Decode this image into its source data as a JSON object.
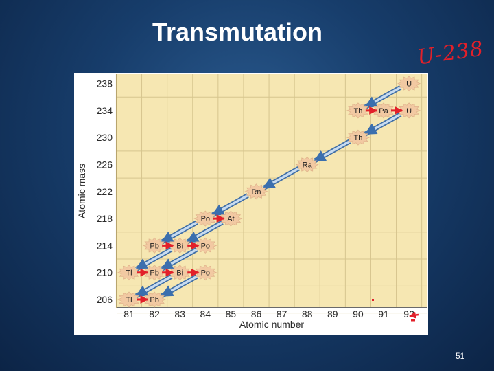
{
  "slide": {
    "title": "Transmutation",
    "page_number": "51",
    "annotation": "U-238"
  },
  "colors": {
    "background": "#173d6b",
    "chart_bg": "#f6e7b2",
    "grid": "#d6c58e",
    "node": "#f2c9a2",
    "arrow": "#5a8ec9",
    "ink": "#e2202a"
  },
  "chart_data": {
    "type": "scatter",
    "title": "",
    "xlabel": "Atomic number",
    "ylabel": "Atomic mass",
    "x_ticks": [
      81,
      82,
      83,
      84,
      85,
      86,
      87,
      88,
      89,
      90,
      91,
      92
    ],
    "y_ticks": [
      206,
      210,
      214,
      218,
      222,
      226,
      230,
      234,
      238
    ],
    "xlim": [
      81,
      92
    ],
    "ylim": [
      206,
      238
    ],
    "grid": true,
    "nuclides": [
      {
        "label": "U",
        "x": 92,
        "y": 238
      },
      {
        "label": "Th",
        "x": 90,
        "y": 234
      },
      {
        "label": "Pa",
        "x": 91,
        "y": 234
      },
      {
        "label": "U",
        "x": 92,
        "y": 234
      },
      {
        "label": "Th",
        "x": 90,
        "y": 230
      },
      {
        "label": "Ra",
        "x": 88,
        "y": 226
      },
      {
        "label": "Rn",
        "x": 86,
        "y": 222
      },
      {
        "label": "Po",
        "x": 84,
        "y": 218
      },
      {
        "label": "At",
        "x": 85,
        "y": 218
      },
      {
        "label": "Pb",
        "x": 82,
        "y": 214
      },
      {
        "label": "Bi",
        "x": 83,
        "y": 214
      },
      {
        "label": "Po",
        "x": 84,
        "y": 214
      },
      {
        "label": "Tl",
        "x": 81,
        "y": 210
      },
      {
        "label": "Pb",
        "x": 82,
        "y": 210
      },
      {
        "label": "Bi",
        "x": 83,
        "y": 210
      },
      {
        "label": "Po",
        "x": 84,
        "y": 210
      },
      {
        "label": "Tl",
        "x": 81,
        "y": 206
      },
      {
        "label": "Pb",
        "x": 82,
        "y": 206
      }
    ],
    "alpha_decays": [
      {
        "from": [
          92,
          238
        ],
        "to": [
          90,
          234
        ]
      },
      {
        "from": [
          92,
          234
        ],
        "to": [
          90,
          230
        ]
      },
      {
        "from": [
          90,
          230
        ],
        "to": [
          88,
          226
        ]
      },
      {
        "from": [
          88,
          226
        ],
        "to": [
          86,
          222
        ]
      },
      {
        "from": [
          86,
          222
        ],
        "to": [
          84,
          218
        ]
      },
      {
        "from": [
          84,
          218
        ],
        "to": [
          82,
          214
        ]
      },
      {
        "from": [
          85,
          218
        ],
        "to": [
          83,
          214
        ]
      },
      {
        "from": [
          83,
          214
        ],
        "to": [
          81,
          210
        ]
      },
      {
        "from": [
          84,
          214
        ],
        "to": [
          82,
          210
        ]
      },
      {
        "from": [
          83,
          210
        ],
        "to": [
          81,
          206
        ]
      },
      {
        "from": [
          84,
          210
        ],
        "to": [
          82,
          206
        ]
      }
    ],
    "beta_decays": [
      {
        "from": [
          90,
          234
        ],
        "to": [
          91,
          234
        ]
      },
      {
        "from": [
          91,
          234
        ],
        "to": [
          92,
          234
        ]
      },
      {
        "from": [
          84,
          218
        ],
        "to": [
          85,
          218
        ]
      },
      {
        "from": [
          82,
          214
        ],
        "to": [
          83,
          214
        ]
      },
      {
        "from": [
          83,
          214
        ],
        "to": [
          84,
          214
        ]
      },
      {
        "from": [
          81,
          210
        ],
        "to": [
          82,
          210
        ]
      },
      {
        "from": [
          82,
          210
        ],
        "to": [
          83,
          210
        ]
      },
      {
        "from": [
          83,
          210
        ],
        "to": [
          84,
          210
        ]
      },
      {
        "from": [
          81,
          206
        ],
        "to": [
          82,
          206
        ]
      }
    ]
  }
}
